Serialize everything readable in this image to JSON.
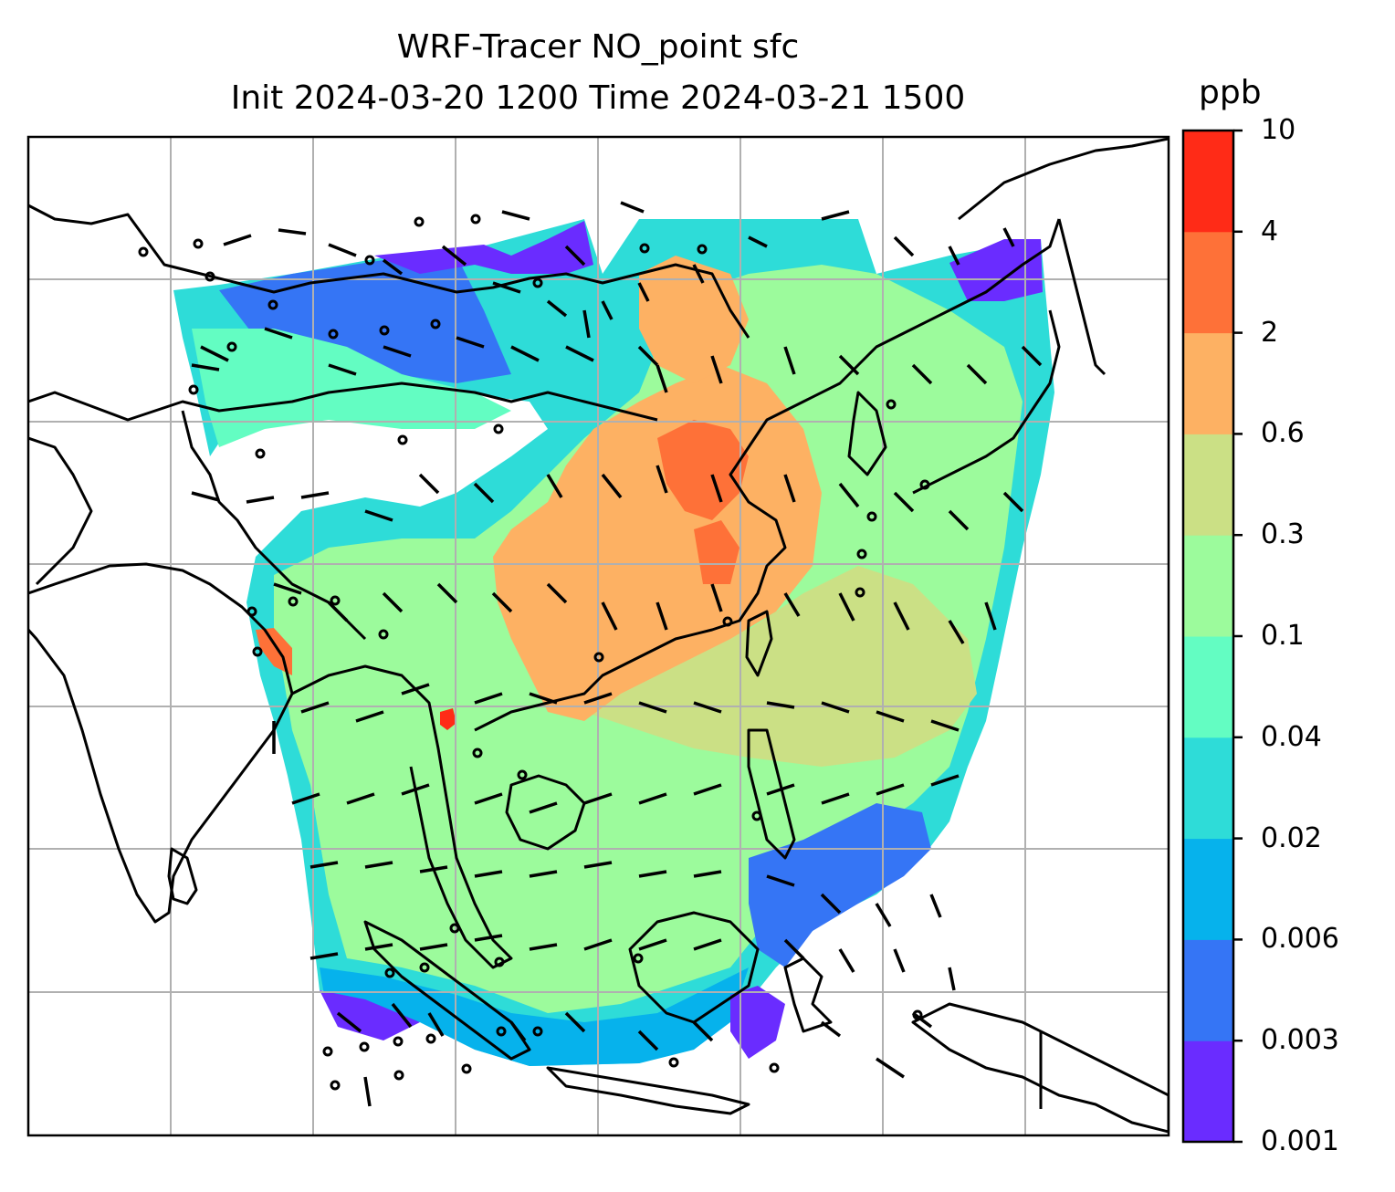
{
  "title_line1": "WRF-Tracer NO_point sfc",
  "title_line2": "Init 2024-03-20 1200 Time 2024-03-21 1500",
  "colorbar": {
    "label": "ppb",
    "ticks": [
      "0.001",
      "0.003",
      "0.006",
      "0.02",
      "0.04",
      "0.1",
      "0.3",
      "0.6",
      "2",
      "4",
      "10"
    ],
    "colors": [
      "#6a2cff",
      "#3575f5",
      "#06b2ec",
      "#2edcd8",
      "#63fdc2",
      "#9cfb9c",
      "#cbe085",
      "#fdb163",
      "#fe7138",
      "#ff2b17"
    ]
  },
  "map": {
    "field": "NO_point tracer concentration (surface)",
    "units": "ppb",
    "overlays": [
      "coastlines",
      "country borders",
      "lat/lon gridlines",
      "wind barbs",
      "calm wind circles"
    ]
  }
}
